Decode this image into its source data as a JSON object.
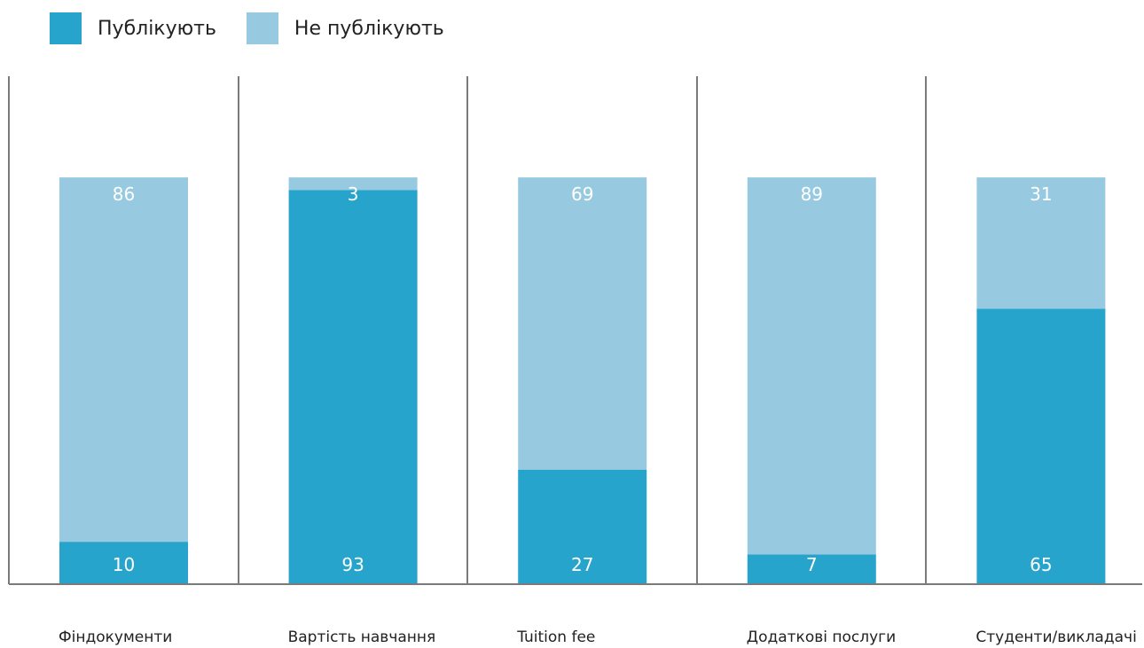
{
  "chart_data": {
    "type": "bar",
    "stacked": true,
    "categories": [
      "Фіндокументи",
      "Вартість навчання",
      "Tuition fee",
      "Додаткові послуги",
      "Студенти/викладачі"
    ],
    "series": [
      {
        "name": "Публікують",
        "values": [
          10,
          93,
          27,
          7,
          65
        ],
        "color": "#27a4cb"
      },
      {
        "name": "Не публікують",
        "values": [
          86,
          3,
          69,
          89,
          31
        ],
        "color": "#97cae0"
      }
    ],
    "ylim": [
      0,
      105
    ],
    "grid": false,
    "legend_position": "top-left"
  }
}
